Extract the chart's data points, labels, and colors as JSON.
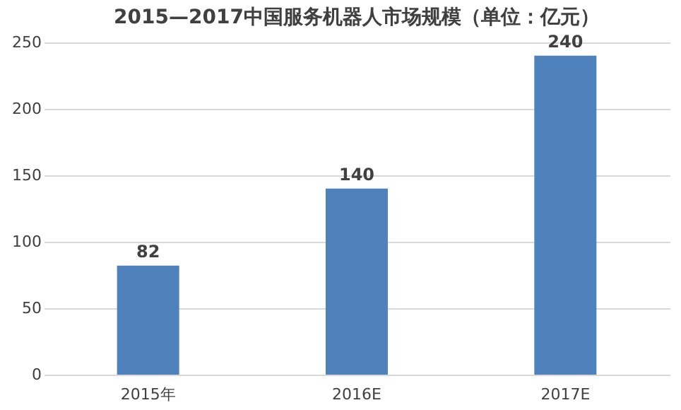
{
  "chart_data": {
    "type": "bar",
    "title": "2015—2017中国服务机器人市场规模（单位：亿元）",
    "categories": [
      "2015年",
      "2016E",
      "2017E"
    ],
    "values": [
      82,
      140,
      240
    ],
    "color": "#4f81bd",
    "ylim": [
      0,
      250
    ],
    "yticks": [
      0,
      50,
      100,
      150,
      200,
      250
    ],
    "grid": "y",
    "data_labels": true
  }
}
